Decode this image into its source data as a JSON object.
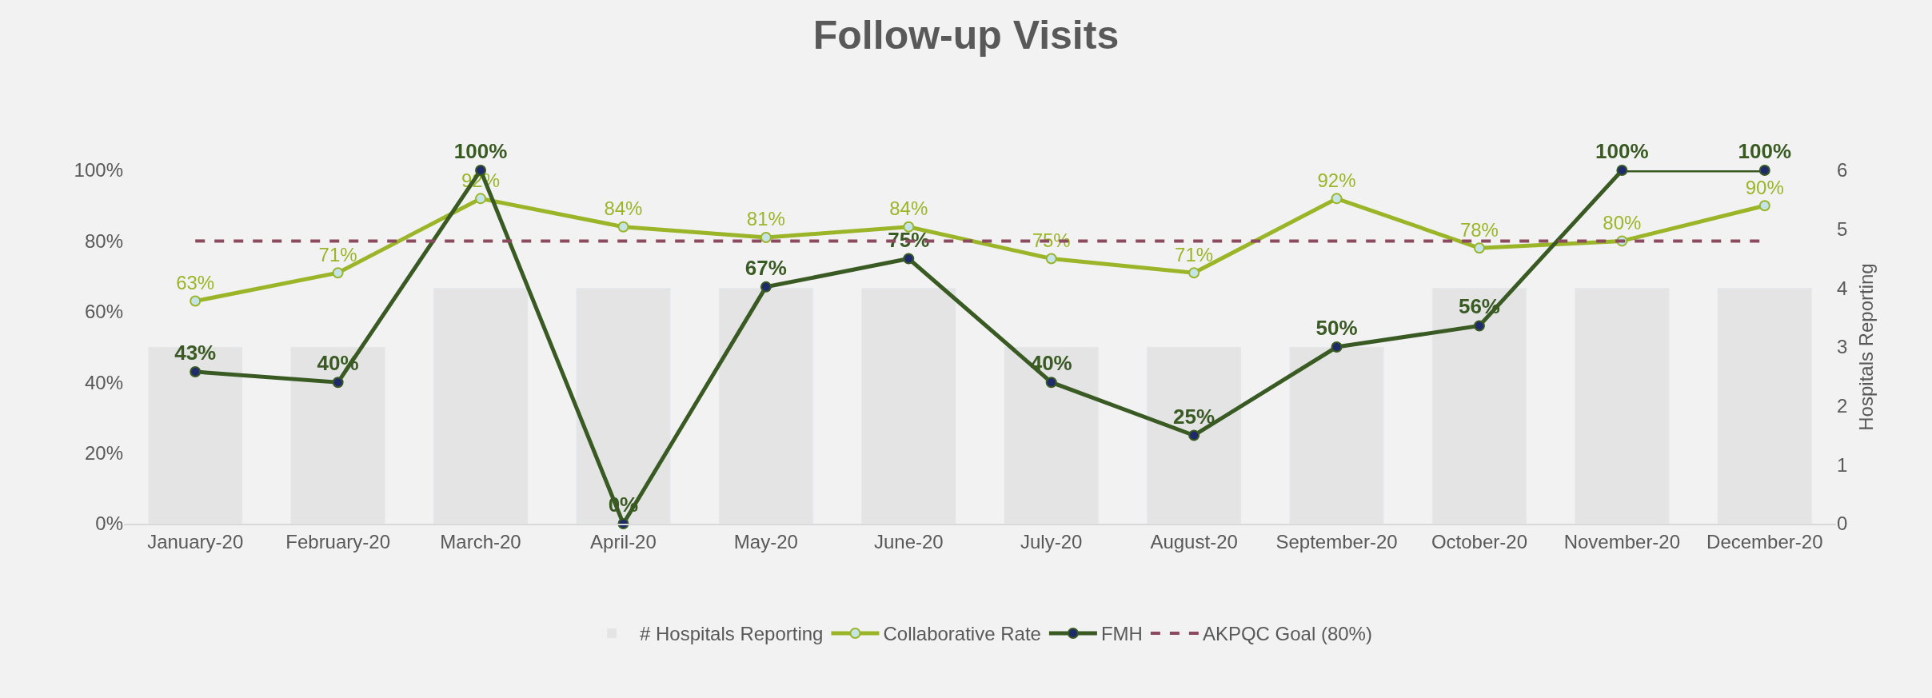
{
  "chart_data": {
    "type": "line",
    "title": "Follow-up Visits",
    "y2label": "Hospitals Reporting",
    "categories": [
      "January-20",
      "February-20",
      "March-20",
      "April-20",
      "May-20",
      "June-20",
      "July-20",
      "August-20",
      "September-20",
      "October-20",
      "November-20",
      "December-20"
    ],
    "series": [
      {
        "name": "# Hospitals Reporting",
        "type": "bar",
        "axis": "y2",
        "color": "#e4e4e4",
        "values": [
          3,
          3,
          4,
          4,
          4,
          4,
          3,
          3,
          3,
          4,
          4,
          4
        ]
      },
      {
        "name": "Collaborative Rate",
        "color": "#9bb528",
        "marker": "circle",
        "values": [
          63,
          71,
          92,
          84,
          81,
          84,
          75,
          71,
          92,
          78,
          80,
          90
        ],
        "value_labels": [
          "63%",
          "71%",
          "92%",
          "84%",
          "81%",
          "84%",
          "75%",
          "71%",
          "92%",
          "78%",
          "80%",
          "90%"
        ]
      },
      {
        "name": "FMH",
        "color": "#3a5a23",
        "marker": "circle",
        "values": [
          43,
          40,
          100,
          0,
          67,
          75,
          40,
          25,
          50,
          56,
          100,
          100
        ],
        "value_labels": [
          "43%",
          "40%",
          "100%",
          "0%",
          "67%",
          "75%",
          "40%",
          "25%",
          "50%",
          "56%",
          "100%",
          "100%"
        ]
      }
    ],
    "ref_lines": [
      {
        "axis": "y",
        "value": 80,
        "label": "AKPQC Goal (80%)",
        "color": "#8b4a5e",
        "line_style": "dashed"
      }
    ],
    "ylim": [
      0,
      100
    ],
    "yticks": [
      {
        "value": 0,
        "label": "0%"
      },
      {
        "value": 20,
        "label": "20%"
      },
      {
        "value": 40,
        "label": "40%"
      },
      {
        "value": 60,
        "label": "60%"
      },
      {
        "value": 80,
        "label": "80%"
      },
      {
        "value": 100,
        "label": "100%"
      }
    ],
    "y2lim": [
      0,
      6
    ],
    "y2ticks": [
      0,
      1,
      2,
      3,
      4,
      5,
      6
    ],
    "grid": false,
    "legend": "bottom"
  }
}
